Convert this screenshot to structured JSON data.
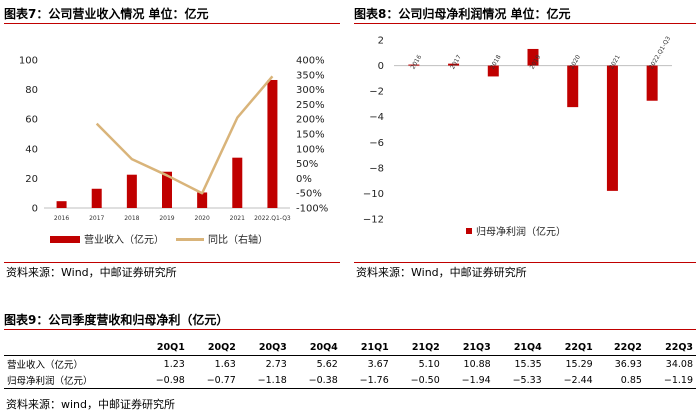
{
  "figure7": {
    "title": "图表7：公司营业收入情况   单位：亿元",
    "source": "资料来源：Wind，中邮证券研究所",
    "chart_data": {
      "type": "bar",
      "categories": [
        "2016",
        "2017",
        "2018",
        "2019",
        "2020",
        "2021",
        "2022.Q1-Q3"
      ],
      "series": [
        {
          "name": "营业收入（亿元）",
          "type": "bar",
          "axis": "left",
          "color": "#c00000",
          "values": [
            4.6,
            13,
            22.5,
            24.5,
            10.5,
            34,
            86.5
          ]
        },
        {
          "name": "同比（右轴）",
          "type": "line",
          "axis": "right",
          "color": "#d9b47a",
          "values": [
            null,
            185,
            65,
            10,
            -50,
            205,
            345
          ]
        }
      ],
      "y_left": {
        "min": 0,
        "max": 100,
        "ticks": [
          "0",
          "20",
          "40",
          "60",
          "80",
          "100"
        ]
      },
      "y_right": {
        "min": -100,
        "max": 400,
        "ticks": [
          "-100%",
          "-50%",
          "0%",
          "50%",
          "100%",
          "150%",
          "200%",
          "250%",
          "300%",
          "350%",
          "400%"
        ]
      },
      "legend": [
        "营业收入（亿元）",
        "同比（右轴）"
      ]
    }
  },
  "figure8": {
    "title": "图表8：公司归母净利润情况   单位：亿元",
    "source": "资料来源：Wind，中邮证券研究所",
    "chart_data": {
      "type": "bar",
      "categories": [
        "2016",
        "2017",
        "2018",
        "2019",
        "2020",
        "2021",
        "2022.Q1-Q3"
      ],
      "series": [
        {
          "name": "归母净利润（亿元）",
          "color": "#c00000",
          "values": [
            0.08,
            0.15,
            -0.85,
            1.3,
            -3.25,
            -9.8,
            -2.75
          ]
        }
      ],
      "y": {
        "min": -12,
        "max": 2,
        "ticks": [
          "2",
          "0",
          "−2",
          "−4",
          "−6",
          "−8",
          "−10",
          "−12"
        ]
      },
      "legend": [
        "归母净利润（亿元）"
      ]
    }
  },
  "figure9": {
    "title": "图表9：公司季度营收和归母净利（亿元）",
    "source": "资料来源：wind，中邮证券研究所",
    "columns": [
      "20Q1",
      "20Q2",
      "20Q3",
      "20Q4",
      "21Q1",
      "21Q2",
      "21Q3",
      "21Q4",
      "22Q1",
      "22Q2",
      "22Q3"
    ],
    "rows": [
      {
        "label": "营业收入（亿元）",
        "values": [
          "1.23",
          "1.63",
          "2.73",
          "5.62",
          "3.67",
          "5.10",
          "10.88",
          "15.35",
          "15.29",
          "36.93",
          "34.08"
        ]
      },
      {
        "label": "归母净利润（亿元）",
        "values": [
          "−0.98",
          "−0.77",
          "−1.18",
          "−0.38",
          "−1.76",
          "−0.50",
          "−1.94",
          "−5.33",
          "−2.44",
          "0.85",
          "−1.19"
        ]
      }
    ]
  }
}
